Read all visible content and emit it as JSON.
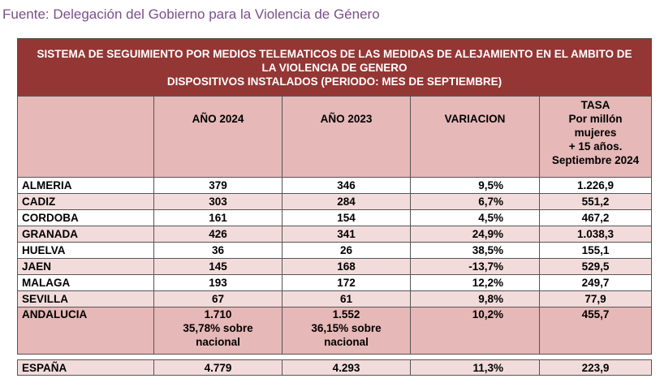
{
  "source": "Fuente: Delegación del Gobierno para la Violencia de Género",
  "title": {
    "line1": "SISTEMA DE SEGUIMIENTO POR MEDIOS TELEMATICOS DE LAS MEDIDAS DE ALEJAMIENTO EN EL AMBITO DE",
    "line2": "LA VIOLENCIA DE GENERO",
    "line3": "DISPOSITIVOS INSTALADOS (PERIODO: MES DE SEPTIEMBRE)"
  },
  "headers": {
    "year2024": "AÑO 2024",
    "year2023": "AÑO 2023",
    "variation": "VARIACION",
    "rate_l1": "TASA",
    "rate_l2": "Por millón",
    "rate_l3": "mujeres",
    "rate_l4": "+ 15 años.",
    "rate_l5": "Septiembre 2024"
  },
  "rows": [
    {
      "name": "ALMERIA",
      "y2024": "379",
      "y2023": "346",
      "var": "9,5%",
      "rate": "1.226,9"
    },
    {
      "name": "CADIZ",
      "y2024": "303",
      "y2023": "284",
      "var": "6,7%",
      "rate": "551,2"
    },
    {
      "name": "CORDOBA",
      "y2024": "161",
      "y2023": "154",
      "var": "4,5%",
      "rate": "467,2"
    },
    {
      "name": "GRANADA",
      "y2024": "426",
      "y2023": "341",
      "var": "24,9%",
      "rate": "1.038,3"
    },
    {
      "name": "HUELVA",
      "y2024": "36",
      "y2023": "26",
      "var": "38,5%",
      "rate": "155,1"
    },
    {
      "name": "JAEN",
      "y2024": "145",
      "y2023": "168",
      "var": "-13,7%",
      "rate": "529,5"
    },
    {
      "name": "MALAGA",
      "y2024": "193",
      "y2023": "172",
      "var": "12,2%",
      "rate": "249,7"
    },
    {
      "name": "SEVILLA",
      "y2024": "67",
      "y2023": "61",
      "var": "9,8%",
      "rate": "77,9"
    }
  ],
  "andalucia": {
    "name": "ANDALUCIA",
    "y2024": "1.710",
    "y2024_share_l1": "35,78% sobre",
    "y2024_share_l2": "nacional",
    "y2023": "1.552",
    "y2023_share_l1": "36,15% sobre",
    "y2023_share_l2": "nacional",
    "var": "10,2%",
    "rate": "455,7"
  },
  "spain": {
    "name": "ESPAÑA",
    "y2024": "4.779",
    "y2023": "4.293",
    "var": "11,3%",
    "rate": "223,9"
  }
}
